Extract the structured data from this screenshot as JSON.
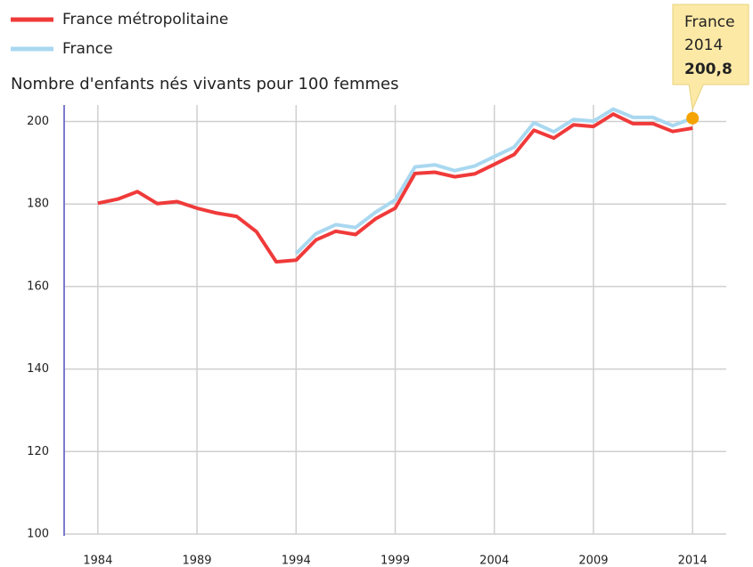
{
  "chart_data": {
    "type": "line",
    "y_label": "Nombre d'enfants nés vivants pour 100 femmes",
    "x": [
      1984,
      1985,
      1986,
      1987,
      1988,
      1989,
      1990,
      1991,
      1992,
      1993,
      1994,
      1995,
      1996,
      1997,
      1998,
      1999,
      2000,
      2001,
      2002,
      2003,
      2004,
      2005,
      2006,
      2007,
      2008,
      2009,
      2010,
      2011,
      2012,
      2013,
      2014
    ],
    "series": [
      {
        "name": "France métropolitaine",
        "color": "#f03a3a",
        "values": [
          180.2,
          181.2,
          183.0,
          180.1,
          180.6,
          179.0,
          177.8,
          177.0,
          173.3,
          166.0,
          166.4,
          171.3,
          173.4,
          172.6,
          176.4,
          179.0,
          187.4,
          187.7,
          186.6,
          187.3,
          189.6,
          192.0,
          197.9,
          196.0,
          199.2,
          198.8,
          201.8,
          199.5,
          199.5,
          197.6,
          198.4
        ]
      },
      {
        "name": "France",
        "color": "#a9d8f0",
        "values": [
          null,
          null,
          null,
          null,
          null,
          null,
          null,
          null,
          null,
          null,
          168.0,
          172.8,
          175.0,
          174.3,
          178.0,
          181.0,
          189.0,
          189.5,
          188.1,
          189.2,
          191.5,
          193.8,
          199.7,
          197.5,
          200.5,
          200.1,
          203.0,
          201.0,
          201.0,
          199.0,
          200.8
        ],
        "value_labels": [
          null,
          null,
          null,
          null,
          null,
          null,
          null,
          null,
          null,
          null,
          null,
          null,
          null,
          null,
          null,
          null,
          null,
          null,
          null,
          null,
          null,
          null,
          null,
          null,
          null,
          null,
          null,
          null,
          null,
          null,
          "200,8"
        ]
      }
    ],
    "xlim": [
      1982.3,
      2015.7
    ],
    "ylim": [
      100,
      204
    ],
    "xticks": [
      1984,
      1989,
      1994,
      1999,
      2004,
      2009,
      2014
    ],
    "yticks": [
      100,
      120,
      140,
      160,
      180,
      200
    ],
    "grid": true,
    "highlight_color": "#f5a300"
  }
}
